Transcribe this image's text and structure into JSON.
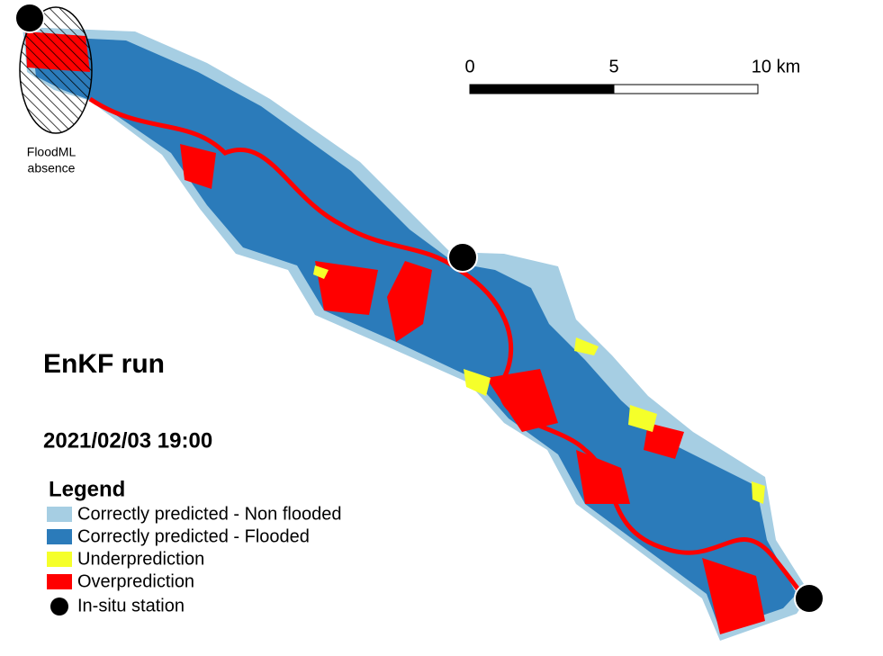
{
  "scale_bar": {
    "labels": [
      "0",
      "5",
      "10 km"
    ]
  },
  "annotation": {
    "lines": [
      "FloodML",
      "absence"
    ]
  },
  "title": "EnKF run",
  "timestamp": "2021/02/03 19:00",
  "legend": {
    "title": "Legend",
    "entries": [
      "Correctly predicted - Non flooded",
      "Correctly predicted - Flooded",
      "Underprediction",
      "Overprediction",
      "In-situ station"
    ]
  }
}
